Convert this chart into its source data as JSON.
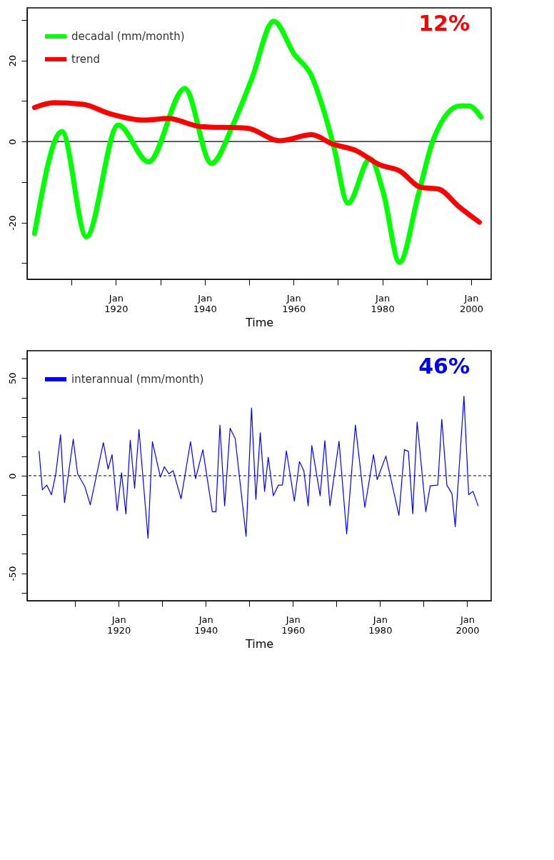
{
  "chart_data": [
    {
      "type": "line",
      "xlabel": "Time",
      "xlim": [
        "1900-01",
        "2004-07"
      ],
      "ylim": [
        -34,
        33
      ],
      "xticks": [
        {
          "value": "1910-01",
          "label": null
        },
        {
          "value": "1920-01",
          "label": "Jan 1920"
        },
        {
          "value": "1930-01",
          "label": null
        },
        {
          "value": "1940-01",
          "label": "Jan 1940"
        },
        {
          "value": "1950-01",
          "label": null
        },
        {
          "value": "1960-01",
          "label": "Jan 1960"
        },
        {
          "value": "1970-01",
          "label": null
        },
        {
          "value": "1980-01",
          "label": "Jan 1980"
        },
        {
          "value": "1990-01",
          "label": null
        },
        {
          "value": "2000-01",
          "label": "Jan 2000"
        }
      ],
      "yticks": [
        {
          "value": -30,
          "label": null
        },
        -20,
        {
          "value": -10,
          "label": null
        },
        0,
        {
          "value": 10,
          "label": null
        },
        20,
        {
          "value": 30,
          "label": null
        }
      ],
      "grid": false,
      "legend": "top left",
      "marker": "none",
      "line_style": "solid",
      "ref_lines": [
        {
          "axis": "y",
          "value": 0,
          "color": "#000000",
          "line_style": "solid"
        }
      ],
      "annotations": [
        "12%"
      ],
      "series": [
        {
          "name": "decadal (mm/month)",
          "color": "#00ff00",
          "x": [
            "1901-09",
            "1907-11",
            "1913-05",
            "1920-07",
            "1927-05",
            "1935-07",
            "1941-07",
            "1946-07",
            "1950-08",
            "1955-07",
            "1960-04",
            "1964-01",
            "1967-01",
            "1969-01",
            "1972-04",
            "1977-04",
            "1980-04",
            "1983-11",
            "1988-03",
            "1991-07",
            "1997-07",
            "1999-07",
            "2002-03"
          ],
          "values": [
            -22.7,
            2.5,
            -23.5,
            4.1,
            -5,
            13.1,
            -5.4,
            4.5,
            15.5,
            29.7,
            21.4,
            16.3,
            6.9,
            -1,
            -15.2,
            -4.2,
            -12.8,
            -29.8,
            -12.8,
            0.6,
            8.8,
            8.8,
            6.1
          ]
        },
        {
          "name": "trend",
          "color": "#ff0000",
          "x": [
            "1901-09",
            "1906-01",
            "1912-08",
            "1918-08",
            "1926-07",
            "1931-10",
            "1939-01",
            "1949-08",
            "1956-11",
            "1964-02",
            "1968-10",
            "1974-01",
            "1979-05",
            "1984-01",
            "1988-09",
            "1992-08",
            "1997-03",
            "2001-11"
          ],
          "values": [
            8.4,
            9.6,
            9.2,
            6.9,
            5.3,
            5.7,
            3.7,
            3.3,
            0.2,
            1.7,
            -0.6,
            -2.2,
            -5.7,
            -7.3,
            -11.3,
            -11.7,
            -16,
            -19.9
          ]
        }
      ]
    },
    {
      "type": "line",
      "xlabel": "Time",
      "xlim": [
        "1899-01",
        "2005-07"
      ],
      "ylim": [
        -64,
        64
      ],
      "xticks": [
        {
          "value": "1910-01",
          "label": null
        },
        {
          "value": "1920-01",
          "label": "Jan 1920"
        },
        {
          "value": "1930-01",
          "label": null
        },
        {
          "value": "1940-01",
          "label": "Jan 1940"
        },
        {
          "value": "1950-01",
          "label": null
        },
        {
          "value": "1960-01",
          "label": "Jan 1960"
        },
        {
          "value": "1970-01",
          "label": null
        },
        {
          "value": "1980-01",
          "label": "Jan 1980"
        },
        {
          "value": "1990-01",
          "label": null
        },
        {
          "value": "2000-01",
          "label": "Jan 2000"
        }
      ],
      "yticks": [
        {
          "value": -60,
          "label": null
        },
        -50,
        {
          "value": -40,
          "label": null
        },
        {
          "value": -30,
          "label": null
        },
        {
          "value": -20,
          "label": null
        },
        {
          "value": -10,
          "label": null
        },
        0,
        {
          "value": 10,
          "label": null
        },
        {
          "value": 20,
          "label": null
        },
        {
          "value": 30,
          "label": null
        },
        {
          "value": 40,
          "label": null
        },
        50,
        {
          "value": 60,
          "label": null
        }
      ],
      "grid": false,
      "legend": "top left",
      "marker": "none",
      "line_style": "solid",
      "ref_lines": [
        {
          "axis": "y",
          "value": 0,
          "color": "#000000",
          "line_style": "dashed"
        }
      ],
      "annotations": [
        "46%"
      ],
      "series": [
        {
          "name": "interannual (mm/month)",
          "color": "#0000ff",
          "x": [
            "1901-10",
            "1902-07",
            "1903-07",
            "1904-08",
            "1905-08",
            "1906-09",
            "1907-08",
            "1909-08",
            "1910-08",
            "1912-04",
            "1913-07",
            "1916-07",
            "1917-08",
            "1918-07",
            "1919-09",
            "1920-09",
            "1921-09",
            "1922-09",
            "1923-09",
            "1924-09",
            "1926-10",
            "1927-10",
            "1929-08",
            "1930-07",
            "1931-07",
            "1932-07",
            "1934-05",
            "1936-07",
            "1937-09",
            "1939-05",
            "1941-07",
            "1942-05",
            "1943-04",
            "1944-05",
            "1945-08",
            "1946-10",
            "1949-04",
            "1950-07",
            "1951-07",
            "1952-07",
            "1953-07",
            "1954-05",
            "1955-07",
            "1956-09",
            "1957-08",
            "1958-07",
            "1960-05",
            "1961-07",
            "1962-07",
            "1963-07",
            "1964-05",
            "1966-04",
            "1967-05",
            "1968-07",
            "1970-08",
            "1972-05",
            "1974-05",
            "1976-07",
            "1978-07",
            "1979-05",
            "1981-05",
            "1984-05",
            "1985-08",
            "1986-07",
            "1987-07",
            "1988-07",
            "1990-07",
            "1991-07",
            "1993-04",
            "1994-03",
            "1995-05",
            "1996-07",
            "1997-04",
            "1999-04",
            "2000-05",
            "2001-05",
            "2002-07"
          ],
          "values": [
            12.5,
            -7.2,
            -4.8,
            -9.7,
            1,
            21,
            -13.8,
            18.7,
            1,
            -5.6,
            -14.9,
            17,
            3.4,
            10.8,
            -17.9,
            1.5,
            -19.5,
            18.2,
            -6.4,
            23.6,
            -32.1,
            17.4,
            -0.7,
            4.6,
            1,
            2.6,
            -11.8,
            17.4,
            -1.5,
            13.3,
            -18.4,
            -18.4,
            25.9,
            -15.4,
            24.3,
            19,
            -31,
            34.6,
            -12.1,
            22,
            -8,
            9.5,
            -10.2,
            -4.8,
            -4.8,
            12.8,
            -13,
            7.2,
            2.6,
            -15.4,
            15.4,
            -10.2,
            18,
            -15.4,
            17.7,
            -29.8,
            25.9,
            -16.2,
            10.8,
            -2,
            10,
            -20.3,
            13.3,
            12.5,
            -19.5,
            27.5,
            -18.4,
            -5.2,
            -4.8,
            28.9,
            -4.8,
            -9.2,
            -26.1,
            40.7,
            -9.7,
            -8,
            -15.4
          ]
        }
      ]
    }
  ]
}
